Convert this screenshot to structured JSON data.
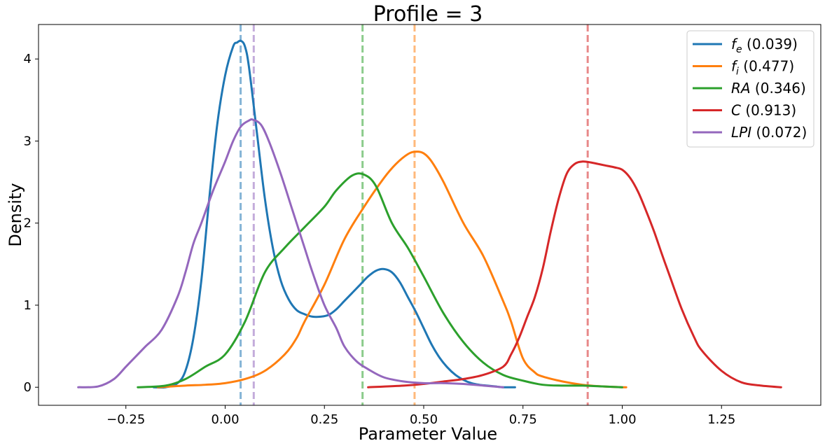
{
  "chart_data": {
    "type": "line",
    "title": "Profile = 3",
    "xlabel": "Parameter Value",
    "ylabel": "Density",
    "xlim": [
      -0.47,
      1.5
    ],
    "ylim": [
      -0.22,
      4.42
    ],
    "xticks": [
      -0.25,
      0.0,
      0.25,
      0.5,
      0.75,
      1.0,
      1.25
    ],
    "xtick_labels": [
      "−0.25",
      "0.00",
      "0.25",
      "0.50",
      "0.75",
      "1.00",
      "1.25"
    ],
    "yticks": [
      0,
      1,
      2,
      3,
      4
    ],
    "ytick_labels": [
      "0",
      "1",
      "2",
      "3",
      "4"
    ],
    "grid": false,
    "legend_position": "top-right",
    "series": [
      {
        "name": "f_e",
        "symbol": "f",
        "subscript": "e",
        "value_label": "(0.039)",
        "color": "#1f77b4",
        "vline": 0.039,
        "x": [
          -0.18,
          -0.15,
          -0.12,
          -0.1,
          -0.08,
          -0.06,
          -0.04,
          -0.02,
          0.0,
          0.02,
          0.03,
          0.04,
          0.05,
          0.06,
          0.08,
          0.1,
          0.12,
          0.14,
          0.16,
          0.18,
          0.2,
          0.22,
          0.24,
          0.26,
          0.28,
          0.3,
          0.32,
          0.34,
          0.36,
          0.38,
          0.4,
          0.42,
          0.44,
          0.46,
          0.48,
          0.5,
          0.52,
          0.54,
          0.56,
          0.58,
          0.6,
          0.62,
          0.64,
          0.66,
          0.68,
          0.7,
          0.73
        ],
        "y": [
          0.0,
          0.0,
          0.05,
          0.2,
          0.6,
          1.3,
          2.3,
          3.2,
          3.8,
          4.15,
          4.2,
          4.22,
          4.15,
          3.9,
          3.1,
          2.3,
          1.7,
          1.3,
          1.07,
          0.94,
          0.89,
          0.86,
          0.86,
          0.88,
          0.95,
          1.05,
          1.15,
          1.25,
          1.35,
          1.42,
          1.44,
          1.4,
          1.28,
          1.1,
          0.92,
          0.72,
          0.52,
          0.36,
          0.24,
          0.15,
          0.09,
          0.05,
          0.03,
          0.02,
          0.01,
          0.0,
          0.0
        ]
      },
      {
        "name": "f_i",
        "symbol": "f",
        "subscript": "i",
        "value_label": "(0.477)",
        "color": "#ff7f0e",
        "vline": 0.477,
        "x": [
          -0.17,
          -0.1,
          -0.05,
          0.0,
          0.05,
          0.1,
          0.15,
          0.18,
          0.2,
          0.25,
          0.3,
          0.35,
          0.4,
          0.43,
          0.46,
          0.48,
          0.5,
          0.52,
          0.55,
          0.6,
          0.65,
          0.7,
          0.72,
          0.75,
          0.78,
          0.8,
          0.85,
          0.9,
          0.95,
          1.0,
          1.01
        ],
        "y": [
          0.0,
          0.02,
          0.03,
          0.05,
          0.1,
          0.2,
          0.4,
          0.6,
          0.8,
          1.25,
          1.8,
          2.2,
          2.55,
          2.72,
          2.84,
          2.87,
          2.85,
          2.75,
          2.5,
          2.0,
          1.6,
          1.05,
          0.8,
          0.35,
          0.18,
          0.13,
          0.07,
          0.03,
          0.01,
          0.0,
          0.0
        ]
      },
      {
        "name": "RA",
        "symbol": "RA",
        "subscript": "",
        "value_label": "(0.346)",
        "color": "#2ca02c",
        "vline": 0.346,
        "x": [
          -0.22,
          -0.15,
          -0.1,
          -0.05,
          0.0,
          0.05,
          0.1,
          0.15,
          0.2,
          0.25,
          0.28,
          0.32,
          0.35,
          0.38,
          0.42,
          0.46,
          0.5,
          0.55,
          0.6,
          0.65,
          0.7,
          0.75,
          0.8,
          0.85,
          0.9,
          0.95,
          1.0
        ],
        "y": [
          0.0,
          0.02,
          0.1,
          0.25,
          0.4,
          0.8,
          1.4,
          1.7,
          1.95,
          2.2,
          2.4,
          2.58,
          2.59,
          2.45,
          2.0,
          1.7,
          1.35,
          0.9,
          0.55,
          0.3,
          0.15,
          0.08,
          0.03,
          0.02,
          0.02,
          0.01,
          0.0
        ]
      },
      {
        "name": "C",
        "symbol": "C",
        "subscript": "",
        "value_label": "(0.913)",
        "color": "#d62728",
        "vline": 0.913,
        "x": [
          0.36,
          0.45,
          0.5,
          0.55,
          0.6,
          0.65,
          0.7,
          0.72,
          0.74,
          0.76,
          0.78,
          0.8,
          0.82,
          0.84,
          0.86,
          0.88,
          0.9,
          0.92,
          0.94,
          0.96,
          0.98,
          1.0,
          1.02,
          1.04,
          1.06,
          1.08,
          1.1,
          1.12,
          1.15,
          1.18,
          1.2,
          1.25,
          1.3,
          1.35,
          1.4
        ],
        "y": [
          0.0,
          0.02,
          0.04,
          0.07,
          0.1,
          0.15,
          0.25,
          0.4,
          0.6,
          0.85,
          1.1,
          1.45,
          1.9,
          2.3,
          2.6,
          2.72,
          2.75,
          2.74,
          2.72,
          2.7,
          2.68,
          2.65,
          2.55,
          2.38,
          2.15,
          1.9,
          1.62,
          1.35,
          0.95,
          0.62,
          0.45,
          0.2,
          0.06,
          0.02,
          0.0
        ]
      },
      {
        "name": "LPI",
        "symbol": "LPI",
        "subscript": "",
        "value_label": "(0.072)",
        "color": "#9467bd",
        "vline": 0.072,
        "x": [
          -0.37,
          -0.32,
          -0.28,
          -0.25,
          -0.22,
          -0.2,
          -0.16,
          -0.12,
          -0.1,
          -0.08,
          -0.06,
          -0.03,
          0.0,
          0.02,
          0.04,
          0.06,
          0.07,
          0.09,
          0.11,
          0.14,
          0.17,
          0.2,
          0.22,
          0.25,
          0.28,
          0.3,
          0.33,
          0.36,
          0.4,
          0.45,
          0.5,
          0.55,
          0.6,
          0.65,
          0.7
        ],
        "y": [
          0.0,
          0.01,
          0.1,
          0.25,
          0.4,
          0.5,
          0.7,
          1.1,
          1.4,
          1.75,
          2.0,
          2.4,
          2.75,
          3.0,
          3.18,
          3.25,
          3.26,
          3.2,
          3.0,
          2.6,
          2.15,
          1.7,
          1.4,
          1.0,
          0.72,
          0.5,
          0.32,
          0.22,
          0.12,
          0.07,
          0.05,
          0.05,
          0.04,
          0.02,
          0.0
        ]
      }
    ]
  }
}
